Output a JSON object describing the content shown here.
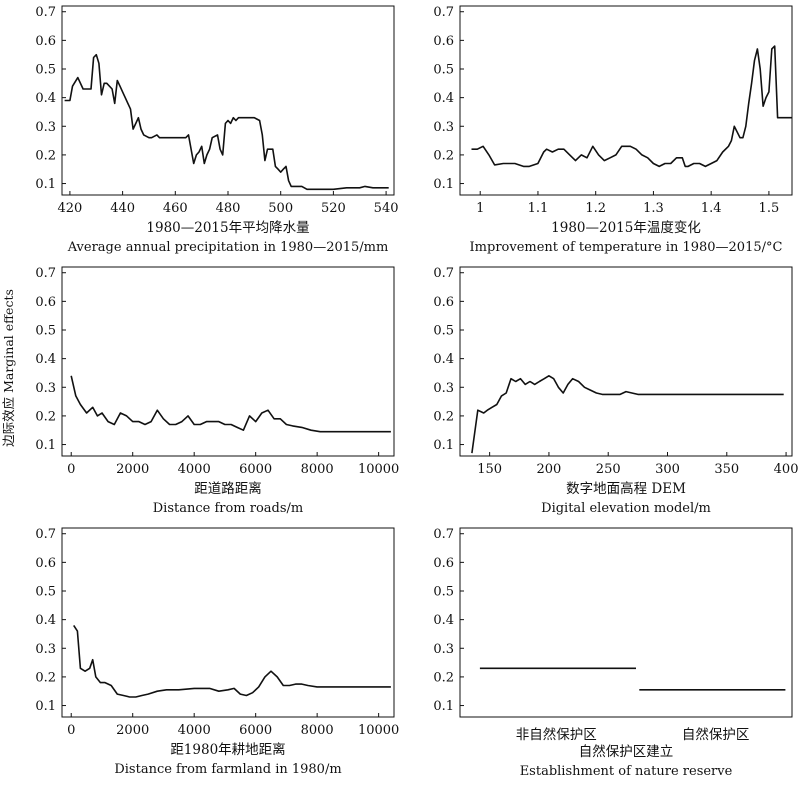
{
  "figure": {
    "shared_ylabel": "边际效应 Marginal effects"
  },
  "chart_data": [
    {
      "type": "line",
      "xlabel_cn": "1980—2015年平均降水量",
      "xlabel_en": "Average annual precipitation in 1980—2015/mm",
      "xlim": [
        417,
        543
      ],
      "ylim": [
        0.06,
        0.72
      ],
      "xticks": [
        420,
        440,
        460,
        480,
        500,
        520,
        540
      ],
      "yticks": [
        0.1,
        0.2,
        0.3,
        0.4,
        0.5,
        0.6,
        0.7
      ],
      "series": [
        {
          "x": [
            418,
            420,
            421,
            423,
            425,
            426,
            428,
            429,
            430,
            431,
            432,
            433,
            434,
            436,
            437,
            438,
            439,
            440,
            441,
            443,
            444,
            445,
            446,
            447,
            448,
            450,
            451,
            453,
            454,
            456,
            458,
            460,
            462,
            464,
            465,
            467,
            468,
            469,
            470,
            471,
            472,
            473,
            474,
            476,
            477,
            478,
            479,
            480,
            481,
            482,
            483,
            484,
            486,
            488,
            490,
            492,
            493,
            494,
            495,
            496,
            497,
            498,
            499,
            500,
            501,
            502,
            503,
            504,
            506,
            508,
            510,
            512,
            515,
            520,
            525,
            530,
            532,
            535,
            538,
            541
          ],
          "y": [
            0.39,
            0.39,
            0.44,
            0.47,
            0.43,
            0.43,
            0.43,
            0.54,
            0.55,
            0.52,
            0.41,
            0.45,
            0.45,
            0.43,
            0.38,
            0.46,
            0.44,
            0.42,
            0.4,
            0.36,
            0.29,
            0.31,
            0.33,
            0.29,
            0.27,
            0.26,
            0.26,
            0.27,
            0.26,
            0.26,
            0.26,
            0.26,
            0.26,
            0.26,
            0.27,
            0.17,
            0.2,
            0.21,
            0.23,
            0.17,
            0.2,
            0.22,
            0.26,
            0.27,
            0.22,
            0.2,
            0.31,
            0.32,
            0.31,
            0.33,
            0.32,
            0.33,
            0.33,
            0.33,
            0.33,
            0.32,
            0.27,
            0.18,
            0.22,
            0.22,
            0.22,
            0.16,
            0.15,
            0.14,
            0.15,
            0.16,
            0.11,
            0.09,
            0.09,
            0.09,
            0.08,
            0.08,
            0.08,
            0.08,
            0.085,
            0.085,
            0.09,
            0.085,
            0.085,
            0.085
          ]
        }
      ]
    },
    {
      "type": "line",
      "xlabel_cn": "1980—2015年温度变化",
      "xlabel_en": "Improvement of temperature in 1980—2015/°C",
      "xlim": [
        0.965,
        1.54
      ],
      "ylim": [
        0.06,
        0.72
      ],
      "xticks": [
        1.0,
        1.1,
        1.2,
        1.3,
        1.4,
        1.5
      ],
      "yticks": [
        0.1,
        0.2,
        0.3,
        0.4,
        0.5,
        0.6,
        0.7
      ],
      "series": [
        {
          "x": [
            0.985,
            0.995,
            1.005,
            1.015,
            1.025,
            1.04,
            1.06,
            1.075,
            1.085,
            1.1,
            1.11,
            1.115,
            1.125,
            1.135,
            1.145,
            1.155,
            1.165,
            1.175,
            1.185,
            1.195,
            1.205,
            1.215,
            1.225,
            1.235,
            1.245,
            1.26,
            1.27,
            1.28,
            1.29,
            1.3,
            1.31,
            1.32,
            1.33,
            1.34,
            1.35,
            1.355,
            1.36,
            1.37,
            1.38,
            1.39,
            1.4,
            1.41,
            1.42,
            1.43,
            1.435,
            1.44,
            1.45,
            1.455,
            1.46,
            1.465,
            1.47,
            1.475,
            1.48,
            1.485,
            1.49,
            1.495,
            1.5,
            1.505,
            1.51,
            1.515,
            1.52,
            1.53,
            1.54
          ],
          "y": [
            0.22,
            0.22,
            0.23,
            0.2,
            0.165,
            0.17,
            0.17,
            0.16,
            0.16,
            0.17,
            0.21,
            0.22,
            0.21,
            0.22,
            0.22,
            0.2,
            0.18,
            0.2,
            0.19,
            0.23,
            0.2,
            0.18,
            0.19,
            0.2,
            0.23,
            0.23,
            0.22,
            0.2,
            0.19,
            0.17,
            0.16,
            0.17,
            0.17,
            0.19,
            0.19,
            0.16,
            0.16,
            0.17,
            0.17,
            0.16,
            0.17,
            0.18,
            0.21,
            0.23,
            0.25,
            0.3,
            0.26,
            0.26,
            0.3,
            0.38,
            0.45,
            0.53,
            0.57,
            0.5,
            0.37,
            0.4,
            0.42,
            0.57,
            0.58,
            0.33,
            0.33,
            0.33,
            0.33
          ]
        }
      ]
    },
    {
      "type": "line",
      "xlabel_cn": "距道路距离",
      "xlabel_en": "Distance from roads/m",
      "xlim": [
        -300,
        10500
      ],
      "ylim": [
        0.06,
        0.72
      ],
      "xticks": [
        0,
        2000,
        4000,
        6000,
        8000,
        10000
      ],
      "yticks": [
        0.1,
        0.2,
        0.3,
        0.4,
        0.5,
        0.6,
        0.7
      ],
      "series": [
        {
          "x": [
            0,
            150,
            300,
            500,
            700,
            850,
            1000,
            1200,
            1400,
            1600,
            1800,
            2000,
            2200,
            2400,
            2600,
            2800,
            3000,
            3200,
            3400,
            3600,
            3800,
            4000,
            4200,
            4400,
            4600,
            4800,
            5000,
            5200,
            5400,
            5600,
            5800,
            6000,
            6200,
            6400,
            6600,
            6800,
            7000,
            7200,
            7500,
            7800,
            8100,
            8500,
            9000,
            9500,
            10000,
            10400
          ],
          "y": [
            0.34,
            0.27,
            0.24,
            0.21,
            0.23,
            0.2,
            0.21,
            0.18,
            0.17,
            0.21,
            0.2,
            0.18,
            0.18,
            0.17,
            0.18,
            0.22,
            0.19,
            0.17,
            0.17,
            0.18,
            0.2,
            0.17,
            0.17,
            0.18,
            0.18,
            0.18,
            0.17,
            0.17,
            0.16,
            0.15,
            0.2,
            0.18,
            0.21,
            0.22,
            0.19,
            0.19,
            0.17,
            0.165,
            0.16,
            0.15,
            0.145,
            0.145,
            0.145,
            0.145,
            0.145,
            0.145
          ]
        }
      ]
    },
    {
      "type": "line",
      "xlabel_cn": "数字地面高程 DEM",
      "xlabel_en": "Digital elevation model/m",
      "xlim": [
        125,
        405
      ],
      "ylim": [
        0.06,
        0.72
      ],
      "xticks": [
        150,
        200,
        250,
        300,
        350,
        400
      ],
      "yticks": [
        0.1,
        0.2,
        0.3,
        0.4,
        0.5,
        0.6,
        0.7
      ],
      "series": [
        {
          "x": [
            135,
            140,
            145,
            148,
            152,
            156,
            160,
            164,
            168,
            172,
            176,
            180,
            184,
            188,
            192,
            196,
            200,
            204,
            208,
            212,
            216,
            220,
            225,
            230,
            235,
            240,
            245,
            250,
            260,
            265,
            270,
            275,
            280,
            300,
            350,
            398
          ],
          "y": [
            0.07,
            0.22,
            0.21,
            0.22,
            0.23,
            0.24,
            0.27,
            0.28,
            0.33,
            0.32,
            0.33,
            0.31,
            0.32,
            0.31,
            0.32,
            0.33,
            0.34,
            0.33,
            0.3,
            0.28,
            0.31,
            0.33,
            0.32,
            0.3,
            0.29,
            0.28,
            0.275,
            0.275,
            0.275,
            0.285,
            0.28,
            0.275,
            0.275,
            0.275,
            0.275,
            0.275
          ]
        }
      ]
    },
    {
      "type": "line",
      "xlabel_cn": "距1980年耕地距离",
      "xlabel_en": "Distance from farmland in 1980/m",
      "xlim": [
        -300,
        10500
      ],
      "ylim": [
        0.06,
        0.72
      ],
      "xticks": [
        0,
        2000,
        4000,
        6000,
        8000,
        10000
      ],
      "yticks": [
        0.1,
        0.2,
        0.3,
        0.4,
        0.5,
        0.6,
        0.7
      ],
      "series": [
        {
          "x": [
            80,
            200,
            300,
            450,
            600,
            700,
            800,
            950,
            1100,
            1300,
            1500,
            1700,
            1900,
            2100,
            2300,
            2500,
            2800,
            3100,
            3500,
            4000,
            4500,
            4800,
            5100,
            5300,
            5500,
            5700,
            5900,
            6100,
            6300,
            6500,
            6700,
            6900,
            7100,
            7300,
            7500,
            7700,
            8000,
            8500,
            9000,
            9500,
            10000,
            10400
          ],
          "y": [
            0.38,
            0.36,
            0.23,
            0.22,
            0.23,
            0.26,
            0.2,
            0.18,
            0.18,
            0.17,
            0.14,
            0.135,
            0.13,
            0.13,
            0.135,
            0.14,
            0.15,
            0.155,
            0.155,
            0.16,
            0.16,
            0.15,
            0.155,
            0.16,
            0.14,
            0.135,
            0.145,
            0.165,
            0.2,
            0.22,
            0.2,
            0.17,
            0.17,
            0.175,
            0.175,
            0.17,
            0.165,
            0.165,
            0.165,
            0.165,
            0.165,
            0.165
          ]
        }
      ]
    },
    {
      "type": "line",
      "xlabel_cn": "自然保护区建立",
      "xlabel_en": "Establishment of nature reserve",
      "xlim": [
        0,
        1
      ],
      "ylim": [
        0.06,
        0.72
      ],
      "xticks": [],
      "yticks": [
        0.1,
        0.2,
        0.3,
        0.4,
        0.5,
        0.6,
        0.7
      ],
      "categories": [
        "非自然保护区",
        "自然保护区"
      ],
      "category_positions": [
        0.29,
        0.77
      ],
      "series": [
        {
          "x": [
            0.06,
            0.53
          ],
          "y": [
            0.23,
            0.23
          ]
        },
        {
          "x": [
            0.54,
            0.98
          ],
          "y": [
            0.155,
            0.155
          ]
        }
      ]
    }
  ]
}
